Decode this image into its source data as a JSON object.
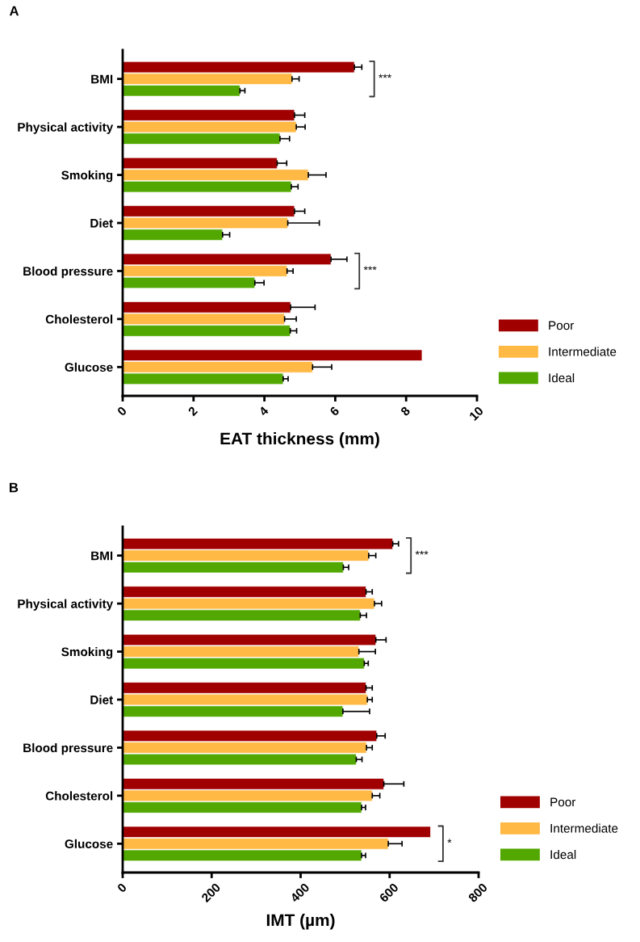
{
  "chart_data": [
    {
      "type": "bar",
      "orientation": "horizontal",
      "title": "A",
      "xlabel": "EAT thickness (mm)",
      "categories": [
        "BMI",
        "Physical activity",
        "Smoking",
        "Diet",
        "Blood pressure",
        "Cholesterol",
        "Glucose"
      ],
      "series": [
        {
          "name": "Poor",
          "color": "#a00000",
          "values": [
            6.54,
            4.85,
            4.36,
            4.85,
            5.88,
            4.74,
            8.45
          ],
          "errors": [
            [
              6.54,
              6.75
            ],
            [
              4.85,
              5.14
            ],
            [
              4.36,
              4.63
            ],
            [
              4.85,
              5.14
            ],
            [
              5.88,
              6.33
            ],
            [
              4.74,
              5.43
            ],
            null
          ]
        },
        {
          "name": "Intermediate",
          "color": "#ffb944",
          "values": [
            4.78,
            4.9,
            5.24,
            4.66,
            4.64,
            4.57,
            5.36
          ],
          "errors": [
            [
              4.78,
              4.98
            ],
            [
              4.9,
              5.15
            ],
            [
              5.24,
              5.74
            ],
            [
              4.66,
              5.55
            ],
            [
              4.64,
              4.81
            ],
            [
              4.57,
              4.9
            ],
            [
              5.36,
              5.9
            ]
          ]
        },
        {
          "name": "Ideal",
          "color": "#52a800",
          "values": [
            3.31,
            4.44,
            4.76,
            2.82,
            3.73,
            4.73,
            4.53
          ],
          "errors": [
            [
              3.31,
              3.45
            ],
            [
              4.44,
              4.71
            ],
            [
              4.76,
              4.95
            ],
            [
              2.82,
              3.02
            ],
            [
              3.73,
              3.99
            ],
            [
              4.73,
              4.91
            ],
            [
              4.53,
              4.67
            ]
          ]
        }
      ],
      "xlim": [
        0,
        10
      ],
      "xticks": [
        0,
        2,
        4,
        6,
        8,
        10
      ],
      "grid": false,
      "legend": "bottom right",
      "annotations": [
        "***",
        "***"
      ]
    },
    {
      "type": "bar",
      "orientation": "horizontal",
      "title": "B",
      "xlabel": "IMT (µm)",
      "categories": [
        "BMI",
        "Physical activity",
        "Smoking",
        "Diet",
        "Blood pressure",
        "Cholesterol",
        "Glucose"
      ],
      "series": [
        {
          "name": "Poor",
          "color": "#a00000",
          "values": [
            607,
            547,
            569,
            547,
            571,
            587,
            692
          ],
          "errors": [
            [
              607,
              620
            ],
            [
              547,
              561
            ],
            [
              569,
              592
            ],
            [
              547,
              561
            ],
            [
              571,
              590
            ],
            [
              587,
              632
            ],
            null
          ]
        },
        {
          "name": "Intermediate",
          "color": "#ffb944",
          "values": [
            553,
            566,
            531,
            550,
            548,
            561,
            597
          ],
          "errors": [
            [
              553,
              569
            ],
            [
              566,
              582
            ],
            [
              531,
              568
            ],
            [
              550,
              561
            ],
            [
              548,
              561
            ],
            [
              561,
              578
            ],
            [
              597,
              628
            ]
          ]
        },
        {
          "name": "Ideal",
          "color": "#52a800",
          "values": [
            496,
            534,
            543,
            495,
            525,
            537,
            537
          ],
          "errors": [
            [
              496,
              508
            ],
            [
              534,
              548
            ],
            [
              543,
              552
            ],
            [
              495,
              555
            ],
            [
              525,
              538
            ],
            [
              537,
              546
            ],
            [
              537,
              546
            ]
          ]
        }
      ],
      "xlim": [
        0,
        800
      ],
      "xticks": [
        0,
        200,
        400,
        600,
        800
      ],
      "grid": false,
      "legend": "bottom right",
      "annotations": [
        "***",
        "*"
      ]
    }
  ]
}
